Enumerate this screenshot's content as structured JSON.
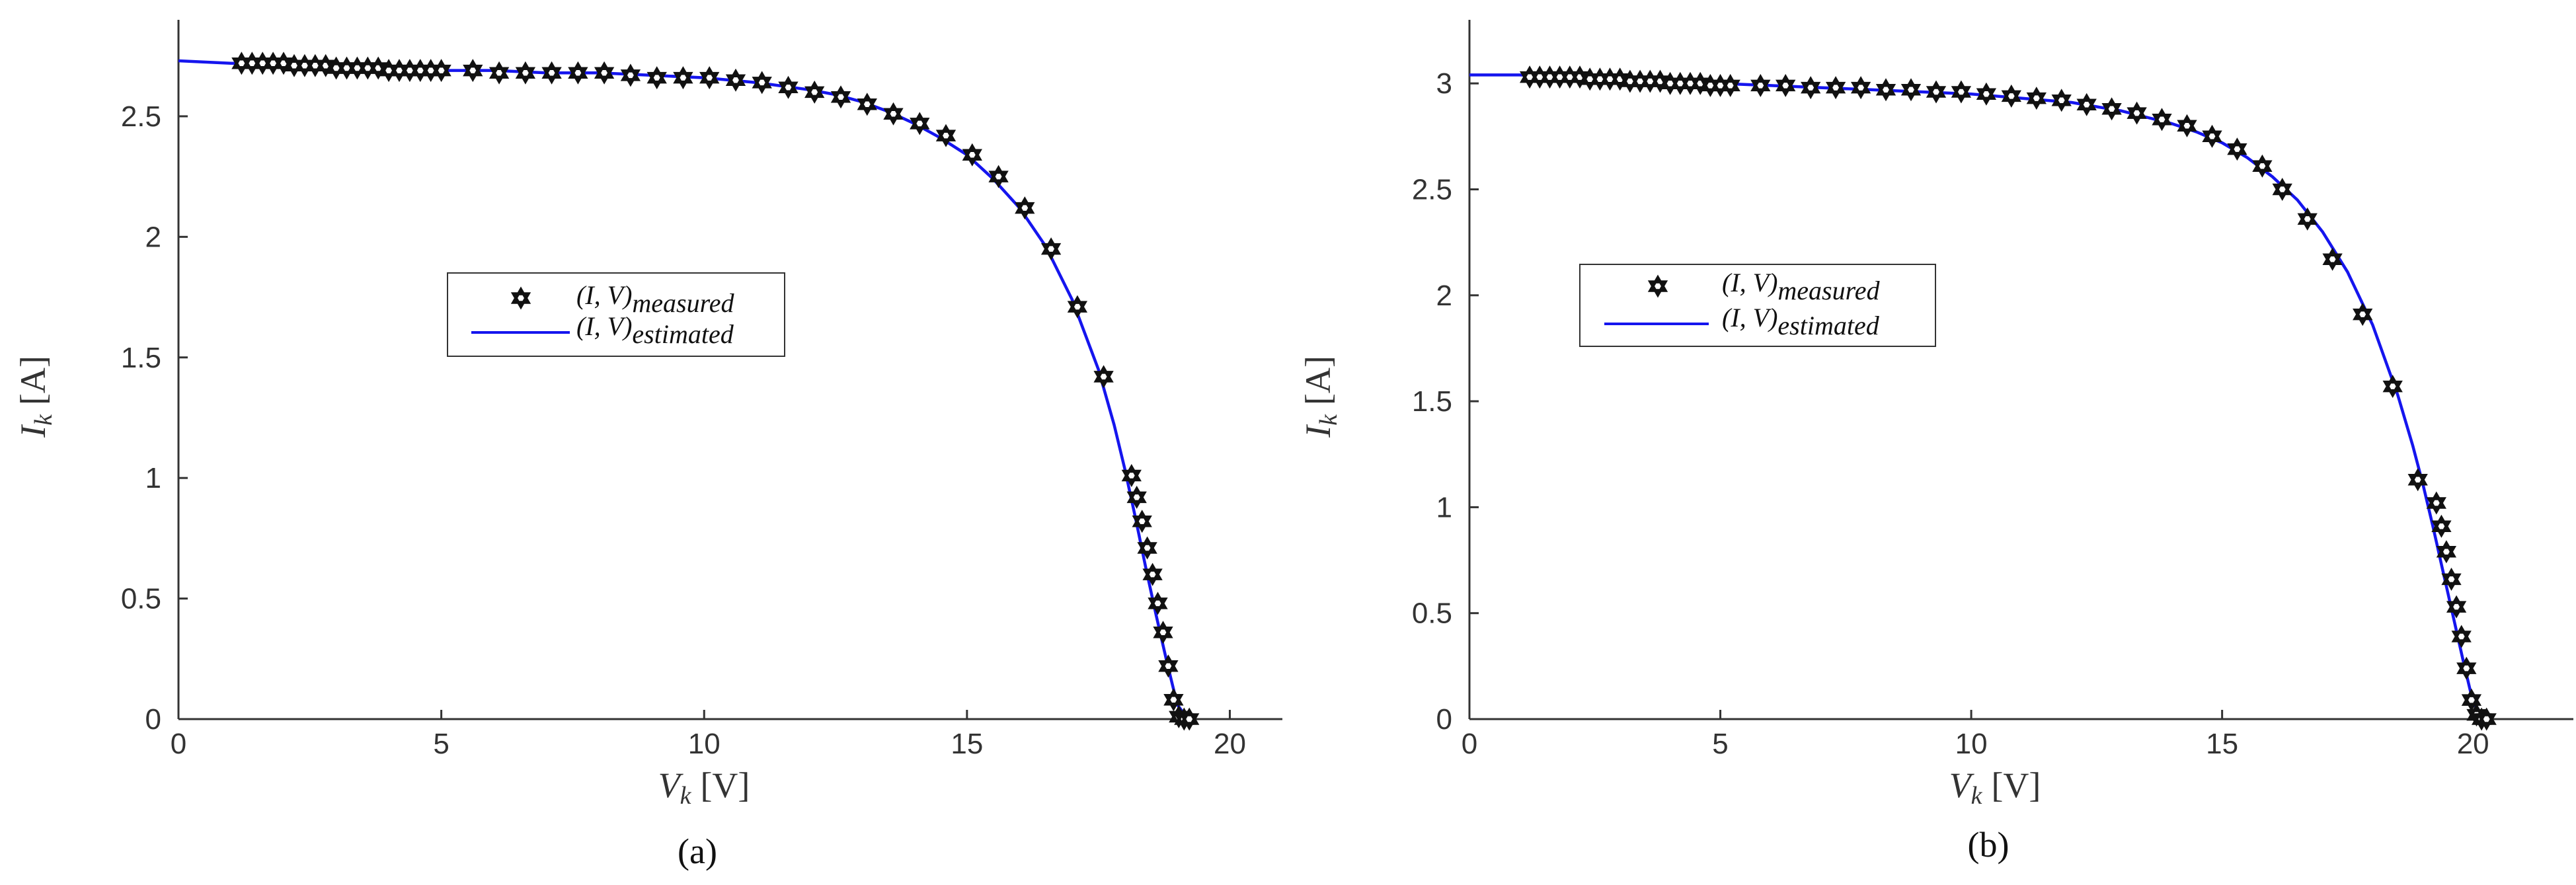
{
  "figure": {
    "subplots": [
      {
        "caption": "(a)",
        "xlabel": {
          "main": "V",
          "sub": "k",
          "unit": "[V]"
        },
        "ylabel": {
          "main": "I",
          "sub": "k",
          "unit": "[A]"
        },
        "xticks": [
          "0",
          "5",
          "10",
          "15",
          "20"
        ],
        "yticks": [
          "0",
          "0.5",
          "1",
          "1.5",
          "2",
          "2.5"
        ],
        "legend": {
          "measured": {
            "main": "(I, V)",
            "sub": "measured"
          },
          "estimated": {
            "main": "(I, V)",
            "sub": "estimated"
          }
        }
      },
      {
        "caption": "(b)",
        "xlabel": {
          "main": "V",
          "sub": "k",
          "unit": "[V]"
        },
        "ylabel": {
          "main": "I",
          "sub": "k",
          "unit": "[A]"
        },
        "xticks": [
          "0",
          "5",
          "10",
          "15",
          "20"
        ],
        "yticks": [
          "0",
          "0.5",
          "1",
          "1.5",
          "2",
          "2.5",
          "3"
        ],
        "legend": {
          "measured": {
            "main": "(I, V)",
            "sub": "measured"
          },
          "estimated": {
            "main": "(I, V)",
            "sub": "estimated"
          }
        }
      }
    ]
  },
  "colors": {
    "estimated": "#1515ee",
    "measured": "#111111",
    "axis": "#333333"
  },
  "chart_data": [
    {
      "type": "line",
      "xlim": [
        0,
        21
      ],
      "ylim": [
        0,
        2.9
      ],
      "x_ticks": [
        0,
        5,
        10,
        15,
        20
      ],
      "y_ticks": [
        0,
        0.5,
        1,
        1.5,
        2,
        2.5
      ],
      "grid": false,
      "legend_position": "center",
      "series": [
        {
          "name": "(I, V)measured",
          "marker": "hexagram",
          "x": [
            1.2,
            1.4,
            1.6,
            1.8,
            2.0,
            2.2,
            2.4,
            2.6,
            2.8,
            3.0,
            3.2,
            3.4,
            3.6,
            3.8,
            4.0,
            4.2,
            4.4,
            4.6,
            4.8,
            5.0,
            5.6,
            6.1,
            6.6,
            7.1,
            7.6,
            8.1,
            8.6,
            9.1,
            9.6,
            10.1,
            10.6,
            11.1,
            11.6,
            12.1,
            12.6,
            13.1,
            13.6,
            14.1,
            14.6,
            15.1,
            15.6,
            16.1,
            16.6,
            17.1,
            17.6,
            18.13,
            18.23,
            18.33,
            18.43,
            18.53,
            18.63,
            18.73,
            18.83,
            18.93,
            19.03,
            19.13,
            19.23
          ],
          "y": [
            2.72,
            2.72,
            2.72,
            2.72,
            2.72,
            2.71,
            2.71,
            2.71,
            2.71,
            2.7,
            2.7,
            2.7,
            2.7,
            2.7,
            2.69,
            2.69,
            2.69,
            2.69,
            2.69,
            2.69,
            2.69,
            2.68,
            2.68,
            2.68,
            2.68,
            2.68,
            2.67,
            2.66,
            2.66,
            2.66,
            2.65,
            2.64,
            2.62,
            2.6,
            2.58,
            2.55,
            2.51,
            2.47,
            2.42,
            2.34,
            2.25,
            2.12,
            1.95,
            1.71,
            1.42,
            1.01,
            0.92,
            0.82,
            0.71,
            0.6,
            0.48,
            0.36,
            0.22,
            0.08,
            0.01,
            0.0,
            0.0
          ]
        },
        {
          "name": "(I, V)estimated",
          "x": [
            0,
            1,
            2,
            3,
            4,
            5,
            6,
            7,
            8,
            9,
            10,
            11,
            12,
            12.5,
            13,
            13.5,
            14,
            14.5,
            15,
            15.5,
            16,
            16.5,
            17,
            17.5,
            17.8,
            18.0,
            18.2,
            18.4,
            18.6,
            18.8,
            19.0,
            19.2,
            19.3
          ],
          "y": [
            2.73,
            2.72,
            2.72,
            2.71,
            2.7,
            2.69,
            2.69,
            2.68,
            2.68,
            2.67,
            2.66,
            2.64,
            2.61,
            2.59,
            2.56,
            2.52,
            2.47,
            2.41,
            2.34,
            2.24,
            2.12,
            1.96,
            1.74,
            1.45,
            1.22,
            1.04,
            0.84,
            0.63,
            0.43,
            0.24,
            0.06,
            0.0,
            0.0
          ]
        }
      ]
    },
    {
      "type": "line",
      "xlim": [
        0,
        22
      ],
      "ylim": [
        0,
        3.3
      ],
      "x_ticks": [
        0,
        5,
        10,
        15,
        20
      ],
      "y_ticks": [
        0,
        0.5,
        1,
        1.5,
        2,
        2.5,
        3
      ],
      "grid": false,
      "legend_position": "center",
      "series": [
        {
          "name": "(I, V)measured",
          "marker": "hexagram",
          "x": [
            1.2,
            1.4,
            1.6,
            1.8,
            2.0,
            2.2,
            2.4,
            2.6,
            2.8,
            3.0,
            3.2,
            3.4,
            3.6,
            3.8,
            4.0,
            4.2,
            4.4,
            4.6,
            4.8,
            5.0,
            5.2,
            5.8,
            6.3,
            6.8,
            7.3,
            7.8,
            8.3,
            8.8,
            9.3,
            9.8,
            10.3,
            10.8,
            11.3,
            11.8,
            12.3,
            12.8,
            13.3,
            13.8,
            14.3,
            14.8,
            15.3,
            15.8,
            16.2,
            16.7,
            17.2,
            17.8,
            18.4,
            18.9,
            19.27,
            19.37,
            19.47,
            19.57,
            19.67,
            19.77,
            19.87,
            19.97,
            20.07,
            20.17,
            20.27
          ],
          "y": [
            3.03,
            3.03,
            3.03,
            3.03,
            3.03,
            3.03,
            3.02,
            3.02,
            3.02,
            3.02,
            3.01,
            3.01,
            3.01,
            3.01,
            3.0,
            3.0,
            3.0,
            3.0,
            2.99,
            2.99,
            2.99,
            2.99,
            2.99,
            2.98,
            2.98,
            2.98,
            2.97,
            2.97,
            2.96,
            2.96,
            2.95,
            2.94,
            2.93,
            2.92,
            2.9,
            2.88,
            2.86,
            2.83,
            2.8,
            2.75,
            2.69,
            2.61,
            2.5,
            2.36,
            2.17,
            1.91,
            1.57,
            1.13,
            1.02,
            0.91,
            0.79,
            0.66,
            0.53,
            0.39,
            0.24,
            0.09,
            0.02,
            0.0,
            0.0
          ]
        },
        {
          "name": "(I, V)estimated",
          "x": [
            0,
            1,
            2,
            3,
            4,
            5,
            6,
            7,
            8,
            9,
            10,
            11,
            12,
            13,
            13.5,
            14,
            14.5,
            15,
            15.5,
            16,
            16.5,
            17,
            17.5,
            18,
            18.5,
            18.8,
            19.0,
            19.2,
            19.4,
            19.6,
            19.8,
            20.0,
            20.2,
            20.4
          ],
          "y": [
            3.04,
            3.04,
            3.03,
            3.02,
            3.01,
            3.0,
            2.99,
            2.98,
            2.97,
            2.96,
            2.95,
            2.93,
            2.91,
            2.87,
            2.84,
            2.81,
            2.77,
            2.72,
            2.65,
            2.56,
            2.45,
            2.3,
            2.11,
            1.86,
            1.53,
            1.29,
            1.11,
            0.91,
            0.7,
            0.49,
            0.28,
            0.08,
            0.0,
            0.0
          ]
        }
      ]
    }
  ]
}
